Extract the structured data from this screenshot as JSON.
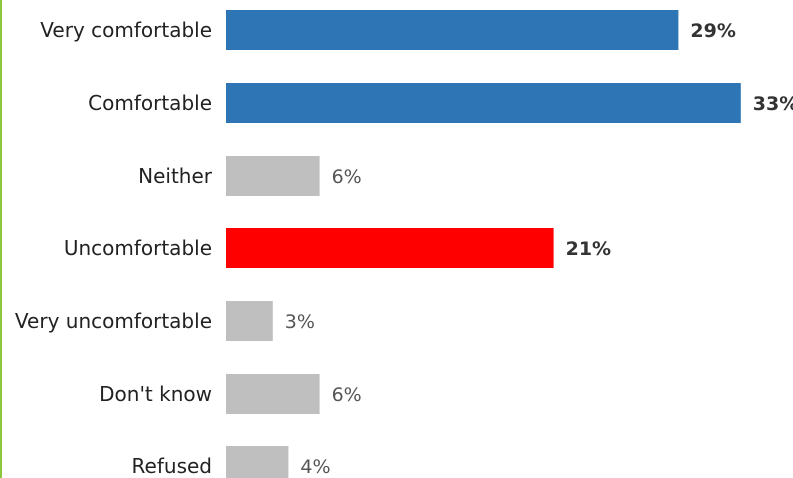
{
  "chart_data": {
    "type": "bar",
    "orientation": "horizontal",
    "categories": [
      "Very comfortable",
      "Comfortable",
      "Neither",
      "Uncomfortable",
      "Very uncomfortable",
      "Don't know",
      "Refused"
    ],
    "values": [
      29,
      33,
      6,
      21,
      3,
      6,
      4
    ],
    "value_labels": [
      "29%",
      "33%",
      "6%",
      "21%",
      "3%",
      "6%",
      "4%"
    ],
    "bar_colors": [
      "#2e75b6",
      "#2e75b6",
      "#bfbfbf",
      "#ff0000",
      "#bfbfbf",
      "#bfbfbf",
      "#bfbfbf"
    ],
    "bold_labels": [
      true,
      true,
      false,
      true,
      false,
      false,
      false
    ],
    "title": "",
    "xlabel": "",
    "ylabel": "",
    "xlim": [
      0,
      33
    ],
    "grid": false,
    "legend": "none"
  },
  "colors": {
    "accent_border": "#8dc63f"
  }
}
